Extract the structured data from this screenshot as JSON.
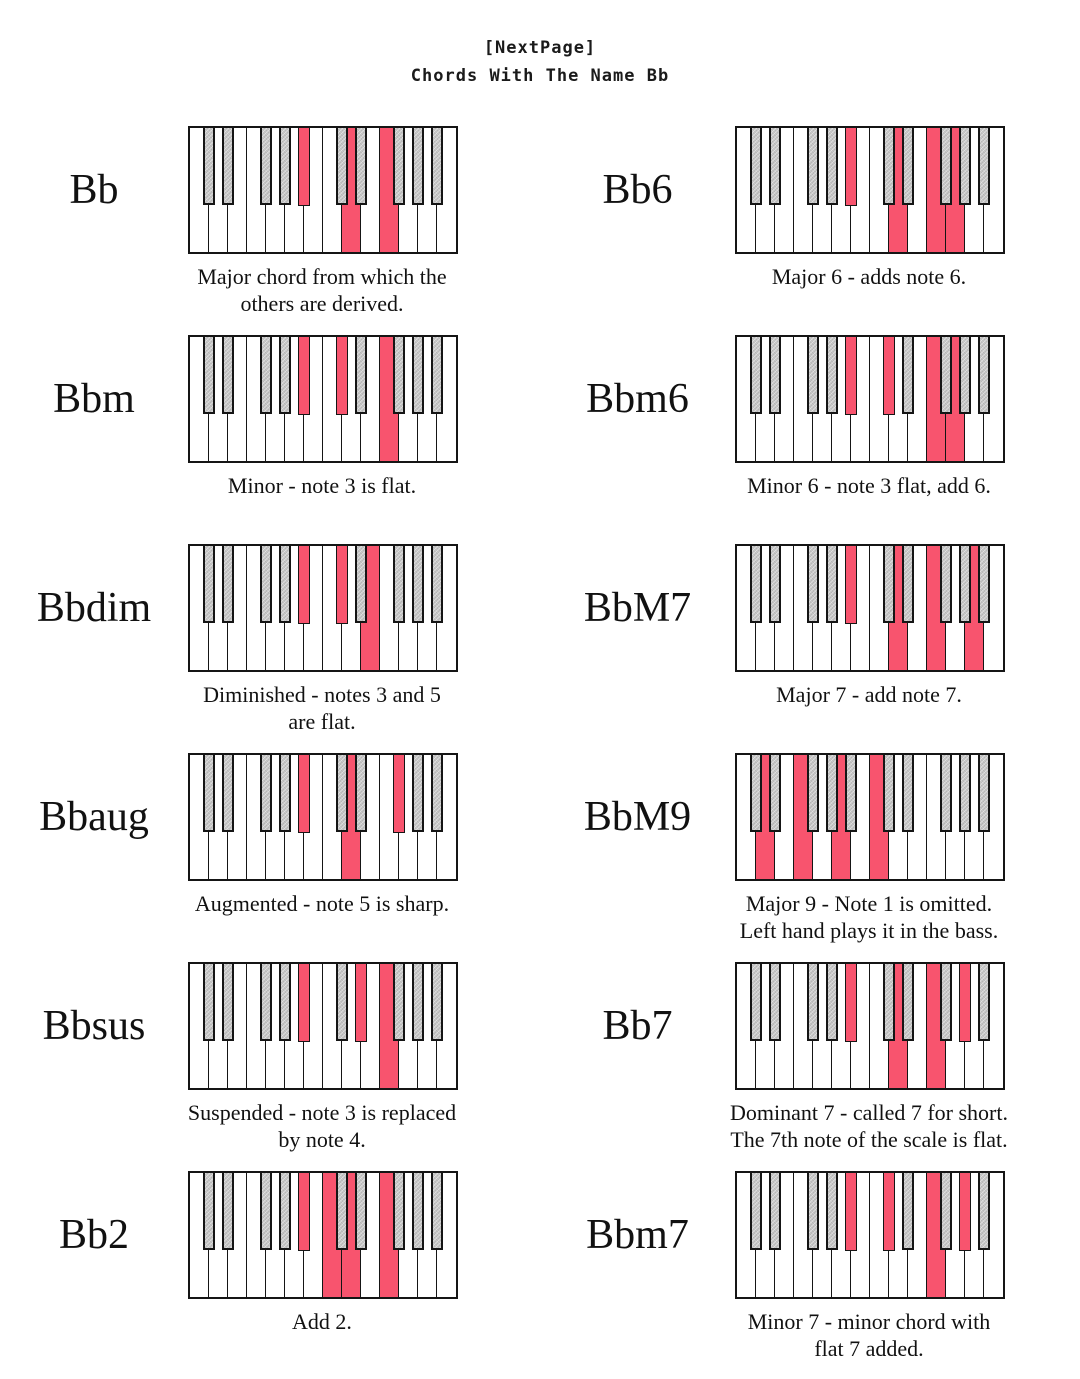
{
  "header": {
    "tag": "[NextPage]",
    "title": "Chords With The Name Bb"
  },
  "colors": {
    "highlight": "#F8546E",
    "black_key_fill": "#C9C9C9",
    "key_outline": "#151515"
  },
  "keyboard": {
    "octaves": 2,
    "white_keys": [
      "C1",
      "D1",
      "E1",
      "F1",
      "G1",
      "A1",
      "B1",
      "C2",
      "D2",
      "E2",
      "F2",
      "G2",
      "A2",
      "B2"
    ],
    "black_keys": [
      {
        "id": "Db1",
        "alt": "C#1",
        "boundary": 1
      },
      {
        "id": "Eb1",
        "alt": "D#1",
        "boundary": 2
      },
      {
        "id": "Gb1",
        "alt": "F#1",
        "boundary": 4
      },
      {
        "id": "Ab1",
        "alt": "G#1",
        "boundary": 5
      },
      {
        "id": "Bb1",
        "alt": "A#1",
        "boundary": 6
      },
      {
        "id": "Db2",
        "alt": "C#2",
        "boundary": 8
      },
      {
        "id": "Eb2",
        "alt": "D#2",
        "boundary": 9
      },
      {
        "id": "Gb2",
        "alt": "F#2",
        "boundary": 11
      },
      {
        "id": "Ab2",
        "alt": "G#2",
        "boundary": 12
      },
      {
        "id": "Bb2",
        "alt": "A#2",
        "boundary": 13
      }
    ]
  },
  "chords": [
    {
      "name": "Bb",
      "highlights": [
        "Bb1",
        "D2",
        "F2"
      ],
      "caption_lines": [
        "Major chord from which the",
        "others are derived."
      ]
    },
    {
      "name": "Bb6",
      "highlights": [
        "Bb1",
        "D2",
        "F2",
        "G2"
      ],
      "caption_lines": [
        "Major 6 - adds note 6."
      ]
    },
    {
      "name": "Bbm",
      "highlights": [
        "Bb1",
        "Db2",
        "F2"
      ],
      "caption_lines": [
        "Minor - note 3 is flat."
      ]
    },
    {
      "name": "Bbm6",
      "highlights": [
        "Bb1",
        "Db2",
        "F2",
        "G2"
      ],
      "caption_lines": [
        "Minor 6 - note 3 flat, add 6."
      ]
    },
    {
      "name": "Bbdim",
      "highlights": [
        "Bb1",
        "Db2",
        "E2"
      ],
      "caption_lines": [
        "Diminished - notes 3 and 5",
        "are flat."
      ]
    },
    {
      "name": "BbM7",
      "highlights": [
        "Bb1",
        "D2",
        "F2",
        "A2"
      ],
      "caption_lines": [
        "Major 7 - add note 7."
      ]
    },
    {
      "name": "Bbaug",
      "highlights": [
        "Bb1",
        "D2",
        "Gb2"
      ],
      "caption_lines": [
        "Augmented - note 5 is sharp."
      ]
    },
    {
      "name": "BbM9",
      "highlights": [
        "D1",
        "F1",
        "A1",
        "C2"
      ],
      "caption_lines": [
        "Major 9 - Note 1 is omitted.",
        "Left hand plays it in the bass."
      ]
    },
    {
      "name": "Bbsus",
      "highlights": [
        "Bb1",
        "Eb2",
        "F2"
      ],
      "caption_lines": [
        "Suspended - note 3 is replaced",
        "by note 4."
      ]
    },
    {
      "name": "Bb7",
      "highlights": [
        "Bb1",
        "D2",
        "F2",
        "Ab2"
      ],
      "caption_lines": [
        "Dominant 7 - called 7 for short.",
        "The 7th note of the scale is flat."
      ]
    },
    {
      "name": "Bb2",
      "highlights": [
        "Bb1",
        "C2",
        "D2",
        "F2"
      ],
      "caption_lines": [
        "Add 2."
      ]
    },
    {
      "name": "Bbm7",
      "highlights": [
        "Bb1",
        "Db2",
        "F2",
        "Ab2"
      ],
      "caption_lines": [
        "Minor 7 - minor chord with",
        "flat 7 added."
      ]
    }
  ]
}
